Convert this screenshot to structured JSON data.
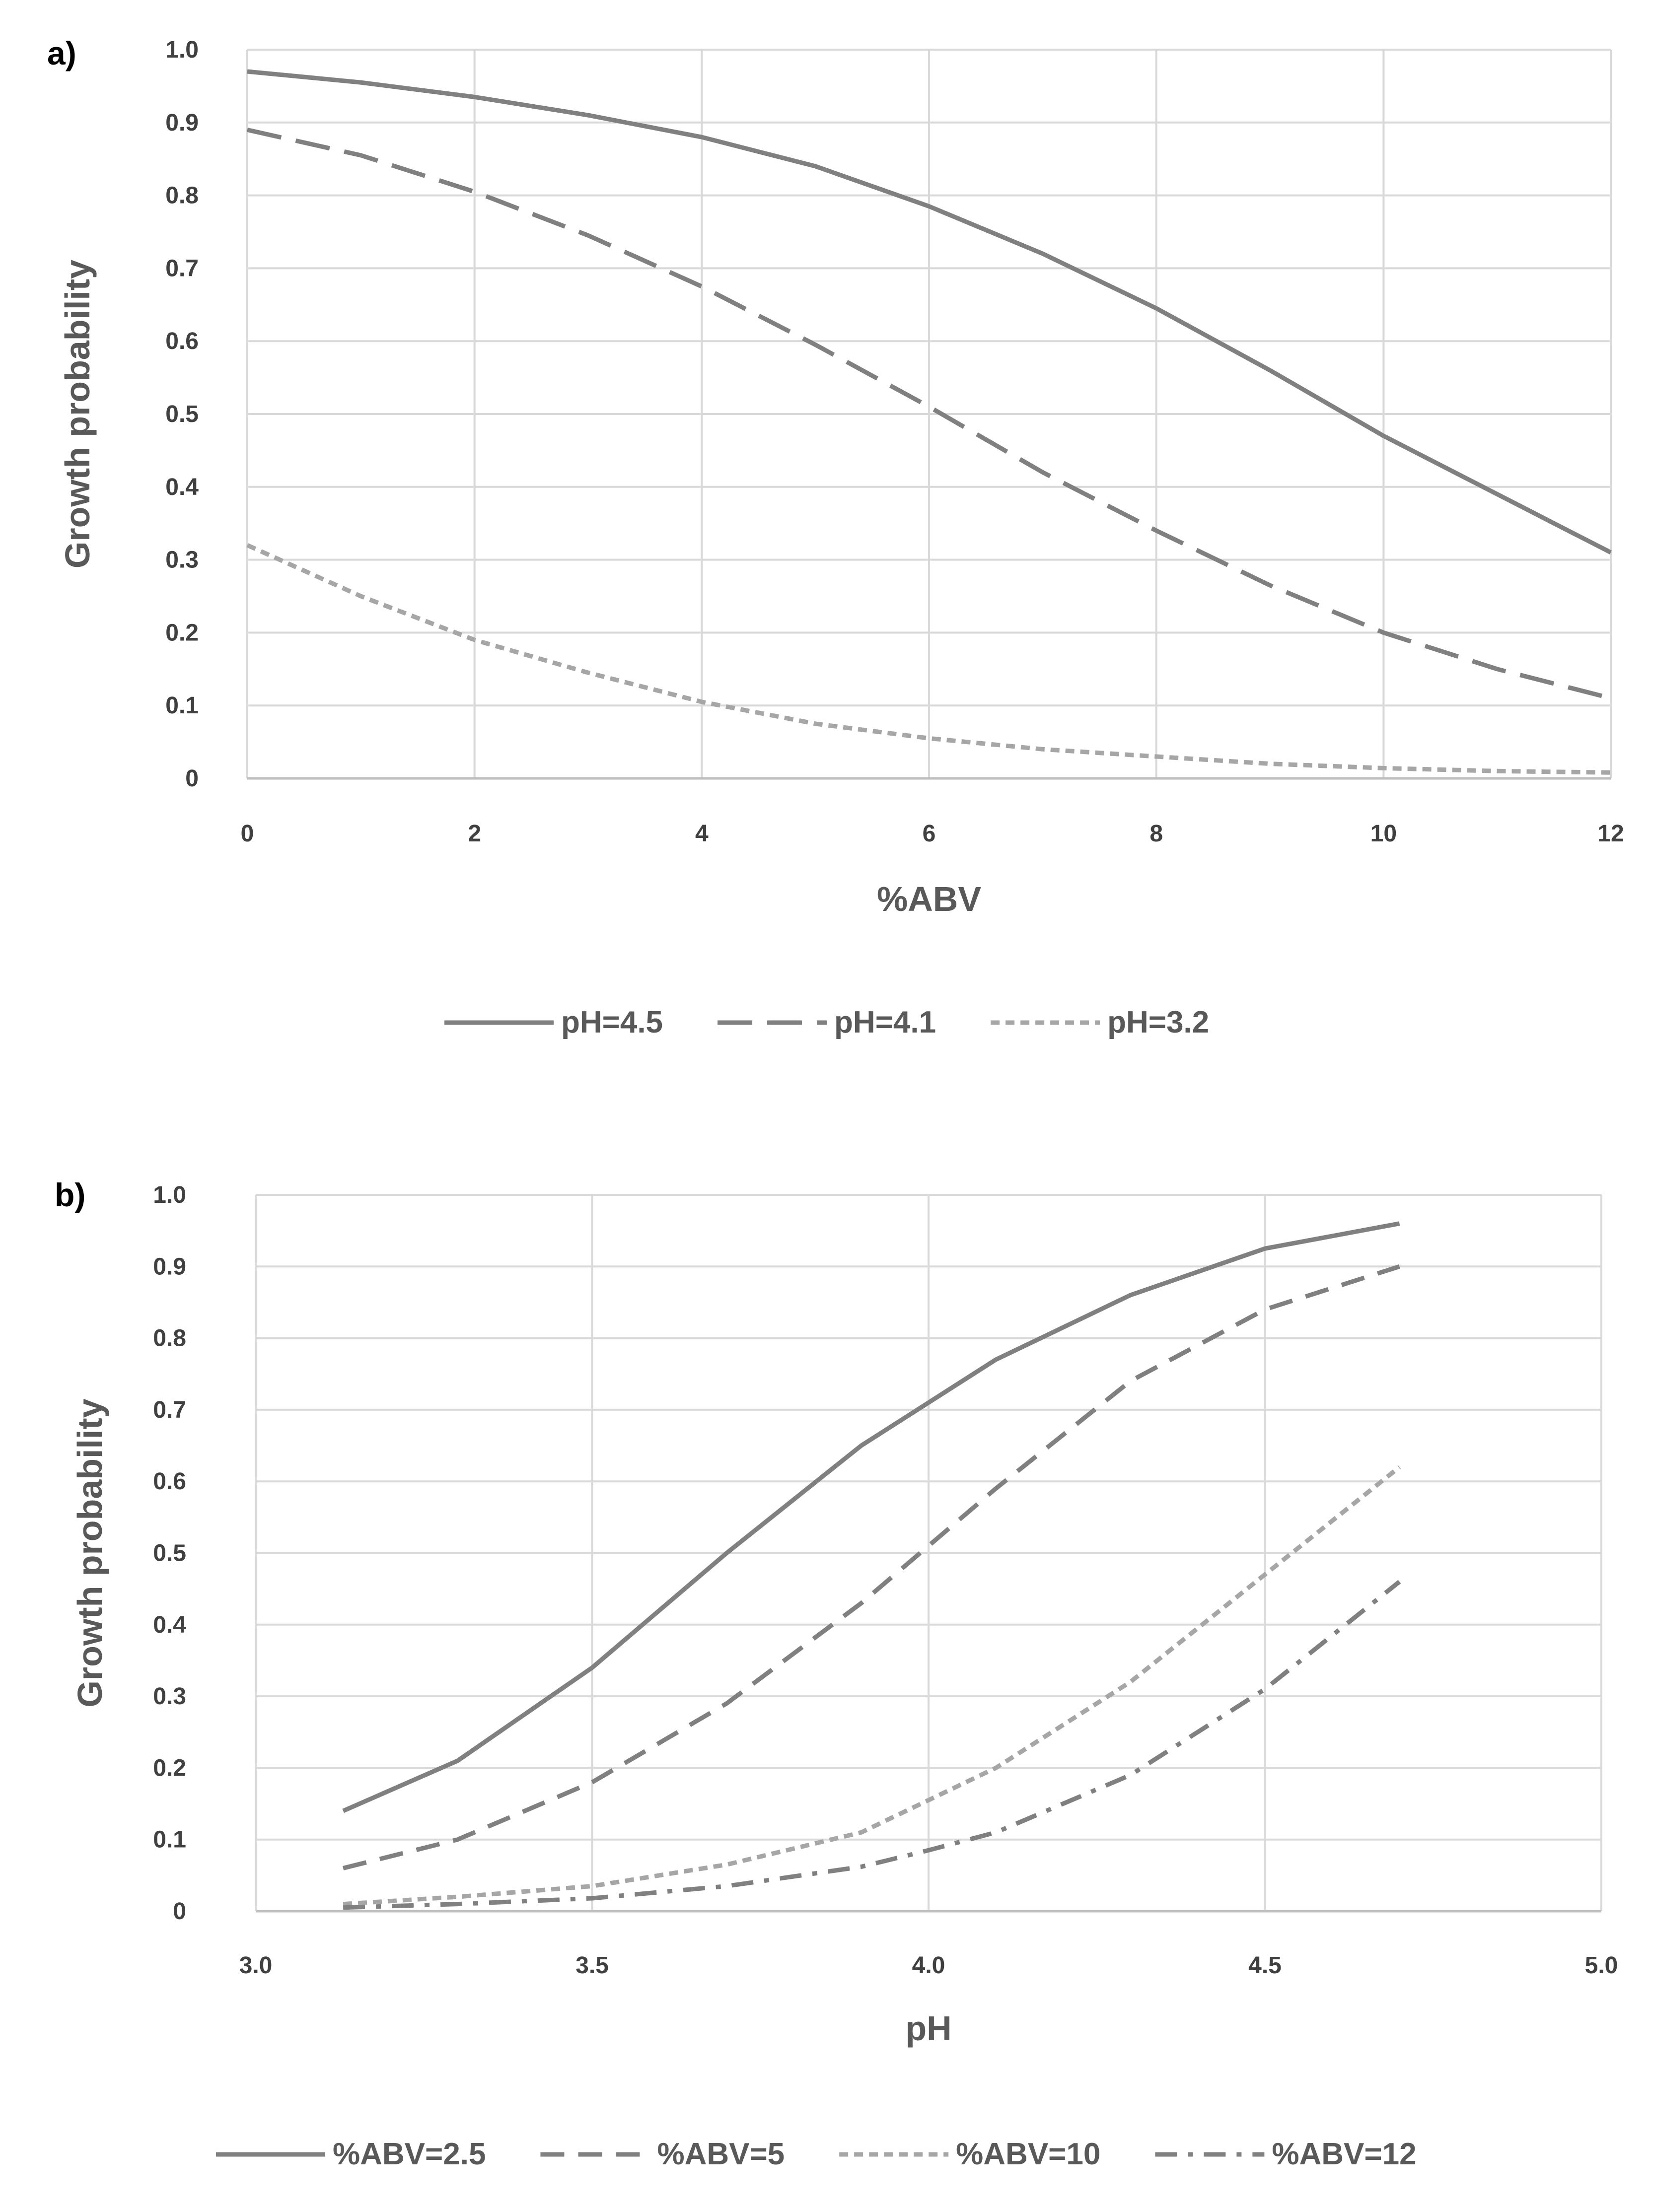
{
  "chart_data": [
    {
      "panel": "a)",
      "type": "line",
      "xlabel": "%ABV",
      "ylabel": "Growth probability",
      "xlim": [
        0,
        12
      ],
      "ylim": [
        0,
        1.0
      ],
      "xticks": [
        0,
        2,
        4,
        6,
        8,
        10,
        12
      ],
      "yticks": [
        0,
        0.1,
        0.2,
        0.3,
        0.4,
        0.5,
        0.6,
        0.7,
        0.8,
        0.9,
        1.0
      ],
      "xtick_labels": [
        "0",
        "2",
        "4",
        "6",
        "8",
        "10",
        "12"
      ],
      "ytick_labels": [
        "0",
        "0.1",
        "0.2",
        "0.3",
        "0.4",
        "0.5",
        "0.6",
        "0.7",
        "0.8",
        "0.9",
        "1.0"
      ],
      "grid": true,
      "legend_position": "bottom",
      "x": [
        0,
        1,
        2,
        3,
        4,
        5,
        6,
        7,
        8,
        9,
        10,
        11,
        12
      ],
      "series": [
        {
          "name": "pH=4.5",
          "style": "solid",
          "color": "#808080",
          "values": [
            0.97,
            0.955,
            0.935,
            0.91,
            0.88,
            0.84,
            0.785,
            0.72,
            0.645,
            0.56,
            0.47,
            0.39,
            0.31
          ]
        },
        {
          "name": "pH=4.1",
          "style": "long-dash",
          "color": "#808080",
          "values": [
            0.89,
            0.855,
            0.805,
            0.745,
            0.675,
            0.595,
            0.51,
            0.42,
            0.34,
            0.265,
            0.2,
            0.15,
            0.11
          ]
        },
        {
          "name": "pH=3.2",
          "style": "short-dash",
          "color": "#a6a6a6",
          "values": [
            0.32,
            0.25,
            0.19,
            0.145,
            0.105,
            0.075,
            0.055,
            0.04,
            0.03,
            0.02,
            0.014,
            0.01,
            0.008
          ]
        }
      ]
    },
    {
      "panel": "b)",
      "type": "line",
      "xlabel": "pH",
      "ylabel": "Growth probability",
      "xlim": [
        3.0,
        5.0
      ],
      "ylim": [
        0,
        1.0
      ],
      "xticks": [
        3.0,
        3.5,
        4.0,
        4.5,
        5.0
      ],
      "yticks": [
        0,
        0.1,
        0.2,
        0.3,
        0.4,
        0.5,
        0.6,
        0.7,
        0.8,
        0.9,
        1.0
      ],
      "xtick_labels": [
        "3.0",
        "3.5",
        "4.0",
        "4.5",
        "5.0"
      ],
      "ytick_labels": [
        "0",
        "0.1",
        "0.2",
        "0.3",
        "0.4",
        "0.5",
        "0.6",
        "0.7",
        "0.8",
        "0.9",
        "1.0"
      ],
      "grid": true,
      "legend_position": "bottom",
      "x": [
        3.13,
        3.3,
        3.5,
        3.7,
        3.9,
        4.0,
        4.1,
        4.3,
        4.5,
        4.7
      ],
      "series": [
        {
          "name": "%ABV=2.5",
          "style": "solid",
          "color": "#808080",
          "values": [
            0.14,
            0.21,
            0.34,
            0.5,
            0.65,
            0.71,
            0.77,
            0.86,
            0.925,
            0.96
          ]
        },
        {
          "name": "%ABV=5",
          "style": "dash",
          "color": "#808080",
          "values": [
            0.06,
            0.1,
            0.18,
            0.29,
            0.43,
            0.51,
            0.59,
            0.74,
            0.84,
            0.9
          ]
        },
        {
          "name": "%ABV=10",
          "style": "short-dash",
          "color": "#a6a6a6",
          "values": [
            0.01,
            0.02,
            0.035,
            0.065,
            0.11,
            0.155,
            0.2,
            0.32,
            0.47,
            0.62
          ]
        },
        {
          "name": "%ABV=12",
          "style": "dash-dot",
          "color": "#808080",
          "values": [
            0.005,
            0.01,
            0.018,
            0.035,
            0.062,
            0.085,
            0.11,
            0.19,
            0.31,
            0.46
          ]
        }
      ]
    }
  ]
}
